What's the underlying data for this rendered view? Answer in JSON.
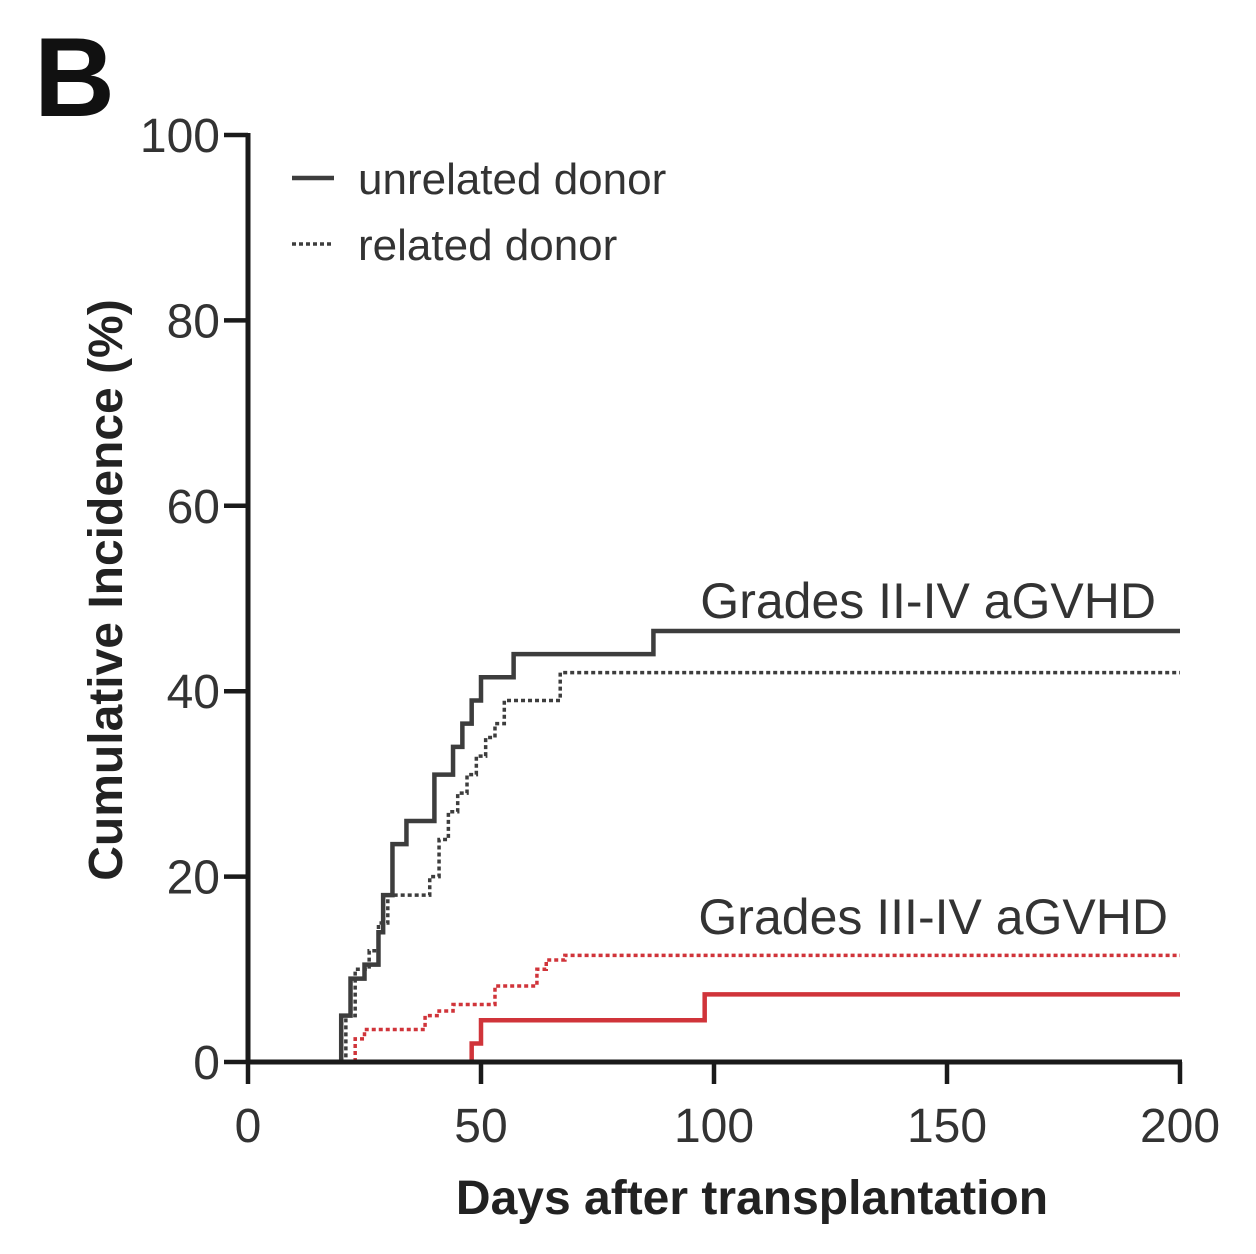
{
  "panel_label": "B",
  "chart_data": {
    "type": "line",
    "step": true,
    "title": "",
    "xlabel": "Days after transplantation",
    "ylabel": "Cumulative Incidence (%)",
    "xlim": [
      0,
      200
    ],
    "ylim": [
      0,
      100
    ],
    "xticks": [
      "0",
      "50",
      "100",
      "150",
      "200"
    ],
    "yticks": [
      "0",
      "20",
      "40",
      "60",
      "80",
      "100"
    ],
    "grid": false,
    "legend": {
      "placement": "top-left",
      "entries": [
        {
          "label": "unrelated donor",
          "style": "solid"
        },
        {
          "label": "related donor",
          "style": "dotted"
        }
      ]
    },
    "annotations": [
      "Grades II-IV aGVHD",
      "Grades III-IV aGVHD"
    ],
    "colors": {
      "grades_II_IV": "#3d3d3d",
      "grades_III_IV": "#d0343a",
      "axis": "#1a1a1a"
    },
    "series": [
      {
        "group": "Grades II-IV aGVHD",
        "donor": "unrelated donor",
        "style": "solid",
        "x": [
          18,
          20,
          22,
          25,
          28,
          29,
          31,
          34,
          40,
          44,
          46,
          48,
          50,
          52,
          57,
          87,
          200
        ],
        "y": [
          0,
          5,
          9,
          10.5,
          14,
          18,
          23.5,
          26,
          31,
          34,
          36.5,
          39,
          41.5,
          41.5,
          44,
          46.5,
          46.5
        ]
      },
      {
        "group": "Grades II-IV aGVHD",
        "donor": "related donor",
        "style": "dotted",
        "x": [
          19,
          21,
          23,
          26,
          28,
          30,
          36,
          39,
          41,
          43,
          45,
          47,
          49,
          51,
          53,
          55,
          62,
          67,
          200
        ],
        "y": [
          0,
          5,
          10,
          12,
          15,
          18,
          18,
          20,
          24,
          27,
          29,
          31,
          33,
          35,
          36.5,
          39,
          39,
          42,
          42
        ]
      },
      {
        "group": "Grades III-IV aGVHD",
        "donor": "unrelated donor",
        "style": "solid",
        "x": [
          46,
          48,
          50,
          98,
          200
        ],
        "y": [
          0,
          2,
          4.5,
          7.3,
          7.3
        ]
      },
      {
        "group": "Grades III-IV aGVHD",
        "donor": "related donor",
        "style": "dotted",
        "x": [
          20,
          23,
          25,
          35,
          38,
          41,
          44,
          48,
          53,
          59,
          62,
          64,
          68,
          200
        ],
        "y": [
          0,
          2.5,
          3.5,
          3.5,
          5,
          5.5,
          6.2,
          6.2,
          8.2,
          8.2,
          10,
          11,
          11.5,
          11.5
        ]
      }
    ]
  }
}
